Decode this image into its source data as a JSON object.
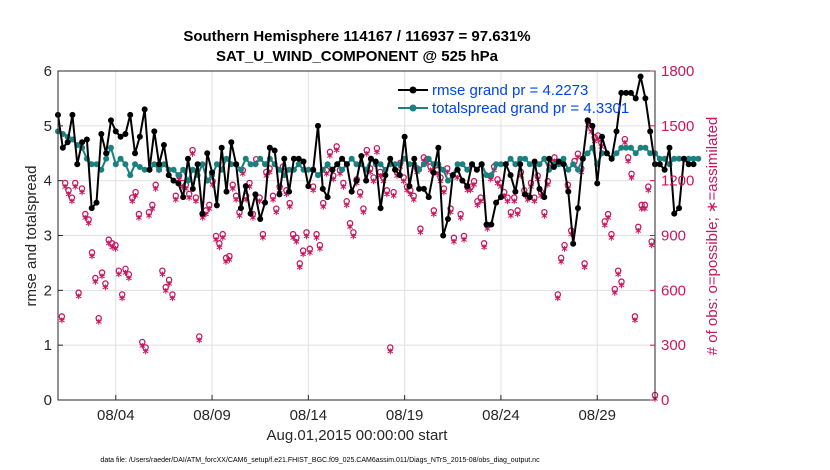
{
  "colors": {
    "rmse": "#000000",
    "spread": "#1a8080",
    "obs": "#c8175e",
    "legend_text": "#0044ee",
    "grid": "#e0e0e0",
    "axis": "#262626"
  },
  "footer": {
    "datafile": "data file: /Users/raeder/DAI/ATM_forcXX/CAM6_setup/f.e21.FHIST_BGC.f09_025.CAM6assim.011/Diags_NTrS_2015-08/obs_diag_output.nc"
  },
  "chart_data": {
    "type": "line",
    "title": "Southern Hemisphere 114167 / 116937 = 97.631%",
    "subtitle": "SAT_U_WIND_COMPONENT @ 525 hPa",
    "xlabel": "Aug.01,2015 00:00:00 start",
    "ylabel": "rmse and totalspread",
    "y2label": "# of obs: o=possible; ∗=assimilated",
    "xlim": [
      1.0,
      32.0
    ],
    "ylim": [
      0,
      6
    ],
    "y2lim": [
      0,
      1800
    ],
    "x_ticks": [
      {
        "value": 4,
        "label": "08/04"
      },
      {
        "value": 9,
        "label": "08/09"
      },
      {
        "value": 14,
        "label": "08/14"
      },
      {
        "value": 19,
        "label": "08/19"
      },
      {
        "value": 24,
        "label": "08/24"
      },
      {
        "value": 29,
        "label": "08/29"
      }
    ],
    "y_ticks": [
      "0",
      "1",
      "2",
      "3",
      "4",
      "5",
      "6"
    ],
    "y2_ticks": [
      "0",
      "300",
      "600",
      "900",
      "1200",
      "1500",
      "1800"
    ],
    "legend": [
      {
        "label": "rmse grand pr = 4.2273",
        "series": "rmse"
      },
      {
        "label": "totalspread grand pr = 4.3301",
        "series": "spread"
      }
    ],
    "series": [
      {
        "name": "rmse",
        "values": [
          5.2,
          4.6,
          4.7,
          5.2,
          4.3,
          4.7,
          4.75,
          3.5,
          3.6,
          4.85,
          4.5,
          5.1,
          4.9,
          4.8,
          4.85,
          5.2,
          4.5,
          4.8,
          5.3,
          4.2,
          4.9,
          4.3,
          4.65,
          4.1,
          4.0,
          3.95,
          3.7,
          4.4,
          3.85,
          4.3,
          3.4,
          4.5,
          4.15,
          3.55,
          4.6,
          3.8,
          4.7,
          4.3,
          3.5,
          3.9,
          3.4,
          3.75,
          3.3,
          3.6,
          4.6,
          4.55,
          3.75,
          4.4,
          3.8,
          4.4,
          4.4,
          4.35,
          3.9,
          4.2,
          5.0,
          3.85,
          3.7,
          4.2,
          4.3,
          4.4,
          4.3,
          3.8,
          4.0,
          4.45,
          4.0,
          4.4,
          4.35,
          3.5,
          4.1,
          4.4,
          4.2,
          4.1,
          4.8,
          3.9,
          4.4,
          3.85,
          3.85,
          3.7,
          4.15,
          4.6,
          3.0,
          3.3,
          4.1,
          4.2,
          4.0,
          3.9,
          4.3,
          4.2,
          4.3,
          3.2,
          3.2,
          3.6,
          3.7,
          4.3,
          4.1,
          3.8,
          4.3,
          3.75,
          3.7,
          4.35,
          3.85,
          3.7,
          4.4,
          4.25,
          4.35,
          4.3,
          3.8,
          2.85,
          3.5,
          4.4,
          5.1,
          5.0,
          3.95,
          4.8,
          4.5,
          4.4,
          4.9,
          5.6,
          5.6,
          5.6,
          5.5,
          5.9,
          5.5,
          4.9,
          4.3,
          4.3,
          4.2,
          4.6,
          3.4,
          3.5,
          4.4,
          4.3,
          4.3
        ],
        "note": "approximate 6-hourly values, starting at x=1.0, step 0.25 day"
      },
      {
        "name": "totalspread",
        "values": [
          4.9,
          4.85,
          4.8,
          4.75,
          4.65,
          4.6,
          4.4,
          4.3,
          4.3,
          4.2,
          4.4,
          4.6,
          4.3,
          4.4,
          4.3,
          4.1,
          4.3,
          4.25,
          4.2,
          4.2,
          4.3,
          4.2,
          4.3,
          4.2,
          4.2,
          4.1,
          4.2,
          4.0,
          4.2,
          4.1,
          4.3,
          4.0,
          4.1,
          4.3,
          4.2,
          4.4,
          4.3,
          4.3,
          4.2,
          4.4,
          4.3,
          4.3,
          4.4,
          4.3,
          4.4,
          4.3,
          4.2,
          4.1,
          4.2,
          4.2,
          4.3,
          4.2,
          4.2,
          4.2,
          4.1,
          4.2,
          4.3,
          4.2,
          4.3,
          4.2,
          4.3,
          4.4,
          4.3,
          4.3,
          4.2,
          4.4,
          4.3,
          4.3,
          4.2,
          4.3,
          4.3,
          4.3,
          4.4,
          4.3,
          4.3,
          4.2,
          4.3,
          4.4,
          4.3,
          4.3,
          4.2,
          4.0,
          4.1,
          4.3,
          4.3,
          4.2,
          4.3,
          4.2,
          4.3,
          4.1,
          4.1,
          4.3,
          4.3,
          4.3,
          4.4,
          4.3,
          4.4,
          4.4,
          4.3,
          4.3,
          4.3,
          4.4,
          4.2,
          4.3,
          4.3,
          4.4,
          4.2,
          4.3,
          4.2,
          4.4,
          4.5,
          4.6,
          4.3,
          4.5,
          4.5,
          4.4,
          4.5,
          4.6,
          4.6,
          4.6,
          4.5,
          4.6,
          4.6,
          4.5,
          4.5,
          4.4,
          4.4,
          4.3,
          4.4,
          4.4,
          4.4,
          4.4,
          4.4,
          4.4
        ]
      },
      {
        "name": "obs_count",
        "values": [
          430,
          1160,
          1120,
          1080,
          1160,
          560,
          1130,
          990,
          960,
          780,
          640,
          420,
          670,
          610,
          850,
          830,
          820,
          680,
          550,
          690,
          660,
          1080,
          1110,
          990,
          290,
          260,
          1000,
          1040,
          1150,
          1250,
          680,
          590,
          630,
          550,
          1090,
          1200,
          1160,
          1150,
          1100,
          1340,
          1080,
          320,
          990,
          1010,
          1040,
          1170,
          870,
          830,
          880,
          750,
          760,
          1150,
          1090,
          1000,
          1230,
          1090,
          1160,
          990,
          1290,
          1080,
          880,
          1220,
          1240,
          1090,
          1020,
          1140,
          1250,
          1120,
          1050,
          880,
          860,
          720,
          790,
          890,
          800,
          1140,
          880,
          820,
          1050,
          1230,
          1330,
          1200,
          1360,
          1230,
          1160,
          1060,
          940,
          890,
          1180,
          1110,
          1020,
          1340,
          1240,
          1190,
          1350,
          1220,
          1190,
          1120,
          260,
          1110,
          1220,
          1270,
          1190,
          1140,
          1120,
          1090,
          1240,
          910,
          1300,
          1290,
          1250,
          1010,
          1230,
          1190,
          1130,
          1240,
          1020,
          860,
          1210,
          990,
          870,
          1140,
          1140,
          1170,
          1060,
          1080,
          830,
          930,
          1200,
          1250,
          1180,
          1160,
          1110,
          1080,
          1000,
          1080,
          1010,
          1220,
          1120,
          1090,
          1160,
          1080,
          1200,
          1110,
          1000,
          1170,
          1270,
          1300,
          550,
          750,
          820,
          1150,
          900,
          1280,
          1320,
          1240,
          720,
          1500,
          1460,
          1410,
          1420,
          1380,
          950,
          990,
          880,
          580,
          680,
          620,
          1400,
          1300,
          1210,
          430,
          920,
          1040,
          1040,
          1140,
          840,
          0
        ],
        "note": "approximate, plotted on right axis; 'o' = possible, '*' = assimilated (nearly identical)"
      }
    ]
  }
}
